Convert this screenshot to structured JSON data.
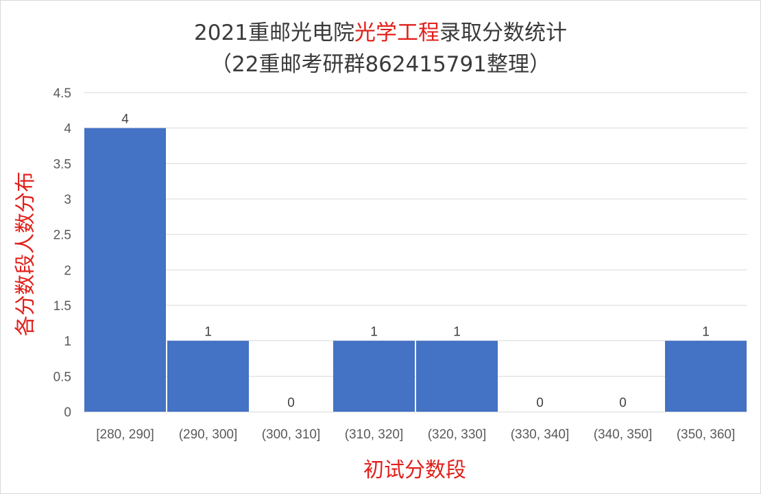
{
  "chart_data": {
    "type": "bar",
    "title": {
      "line1_prefix": "2021重邮光电院",
      "line1_highlight": "光学工程",
      "line1_suffix": "录取分数统计",
      "line2": "（22重邮考研群862415791整理）"
    },
    "categories": [
      "[280, 290]",
      "(290, 300]",
      "(300, 310]",
      "(310, 320]",
      "(320, 330]",
      "(330, 340]",
      "(340, 350]",
      "(350, 360]"
    ],
    "values": [
      4,
      1,
      0,
      1,
      1,
      0,
      0,
      1
    ],
    "xlabel": "初试分数段",
    "ylabel": "各分数段人数分布",
    "ylim": [
      0,
      4.5
    ],
    "yticks": [
      "0",
      "0.5",
      "1",
      "1.5",
      "2",
      "2.5",
      "3",
      "3.5",
      "4",
      "4.5"
    ],
    "grid": true,
    "colors": {
      "bar": "#4472c4",
      "grid": "#d9d9d9",
      "highlight": "#e0201b",
      "axis_label": "#e0201b"
    }
  }
}
